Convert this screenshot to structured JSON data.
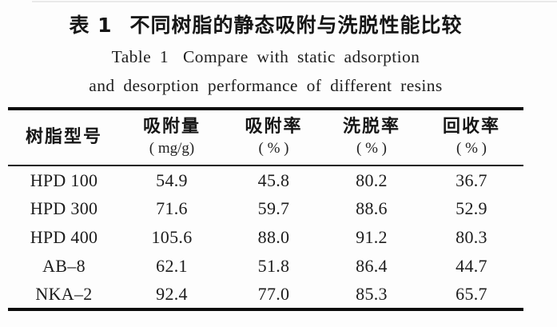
{
  "page": {
    "background": "#fdfdfd",
    "text_color": "#1b1b1b",
    "rule_color": "#0c0c0c"
  },
  "title": {
    "zh_label": "表 1",
    "zh_text": "不同树脂的静态吸附与洗脱性能比较",
    "en_label": "Table 1",
    "en_line1": "Compare with static adsorption",
    "en_line2": "and desorption performance of different resins"
  },
  "table": {
    "columns": [
      {
        "label": "树脂型号",
        "unit": ""
      },
      {
        "label": "吸附量",
        "unit": "( mg/g)"
      },
      {
        "label": "吸附率",
        "unit": "( % )"
      },
      {
        "label": "洗脱率",
        "unit": "( % )"
      },
      {
        "label": "回收率",
        "unit": "( % )"
      }
    ],
    "rows": [
      {
        "resin": "HPD 100",
        "values": [
          "54.9",
          "45.8",
          "80.2",
          "36.7"
        ]
      },
      {
        "resin": "HPD 300",
        "values": [
          "71.6",
          "59.7",
          "88.6",
          "52.9"
        ]
      },
      {
        "resin": "HPD 400",
        "values": [
          "105.6",
          "88.0",
          "91.2",
          "80.3"
        ]
      },
      {
        "resin": "AB–8",
        "values": [
          "62.1",
          "51.8",
          "86.4",
          "44.7"
        ]
      },
      {
        "resin": "NKA–2",
        "values": [
          "92.4",
          "77.0",
          "85.3",
          "65.7"
        ]
      }
    ]
  },
  "chart_data": {
    "type": "table",
    "title": "表1 不同树脂的静态吸附与洗脱性能比较 / Table 1 Compare with static adsorption and desorption performance of different resins",
    "columns": [
      "树脂型号",
      "吸附量 ( mg/g)",
      "吸附率 ( % )",
      "洗脱率 ( % )",
      "回收率 ( % )"
    ],
    "rows": [
      [
        "HPD 100",
        54.9,
        45.8,
        80.2,
        36.7
      ],
      [
        "HPD 300",
        71.6,
        59.7,
        88.6,
        52.9
      ],
      [
        "HPD 400",
        105.6,
        88.0,
        91.2,
        80.3
      ],
      [
        "AB–8",
        62.1,
        51.8,
        86.4,
        44.7
      ],
      [
        "NKA–2",
        92.4,
        77.0,
        85.3,
        65.7
      ]
    ]
  }
}
